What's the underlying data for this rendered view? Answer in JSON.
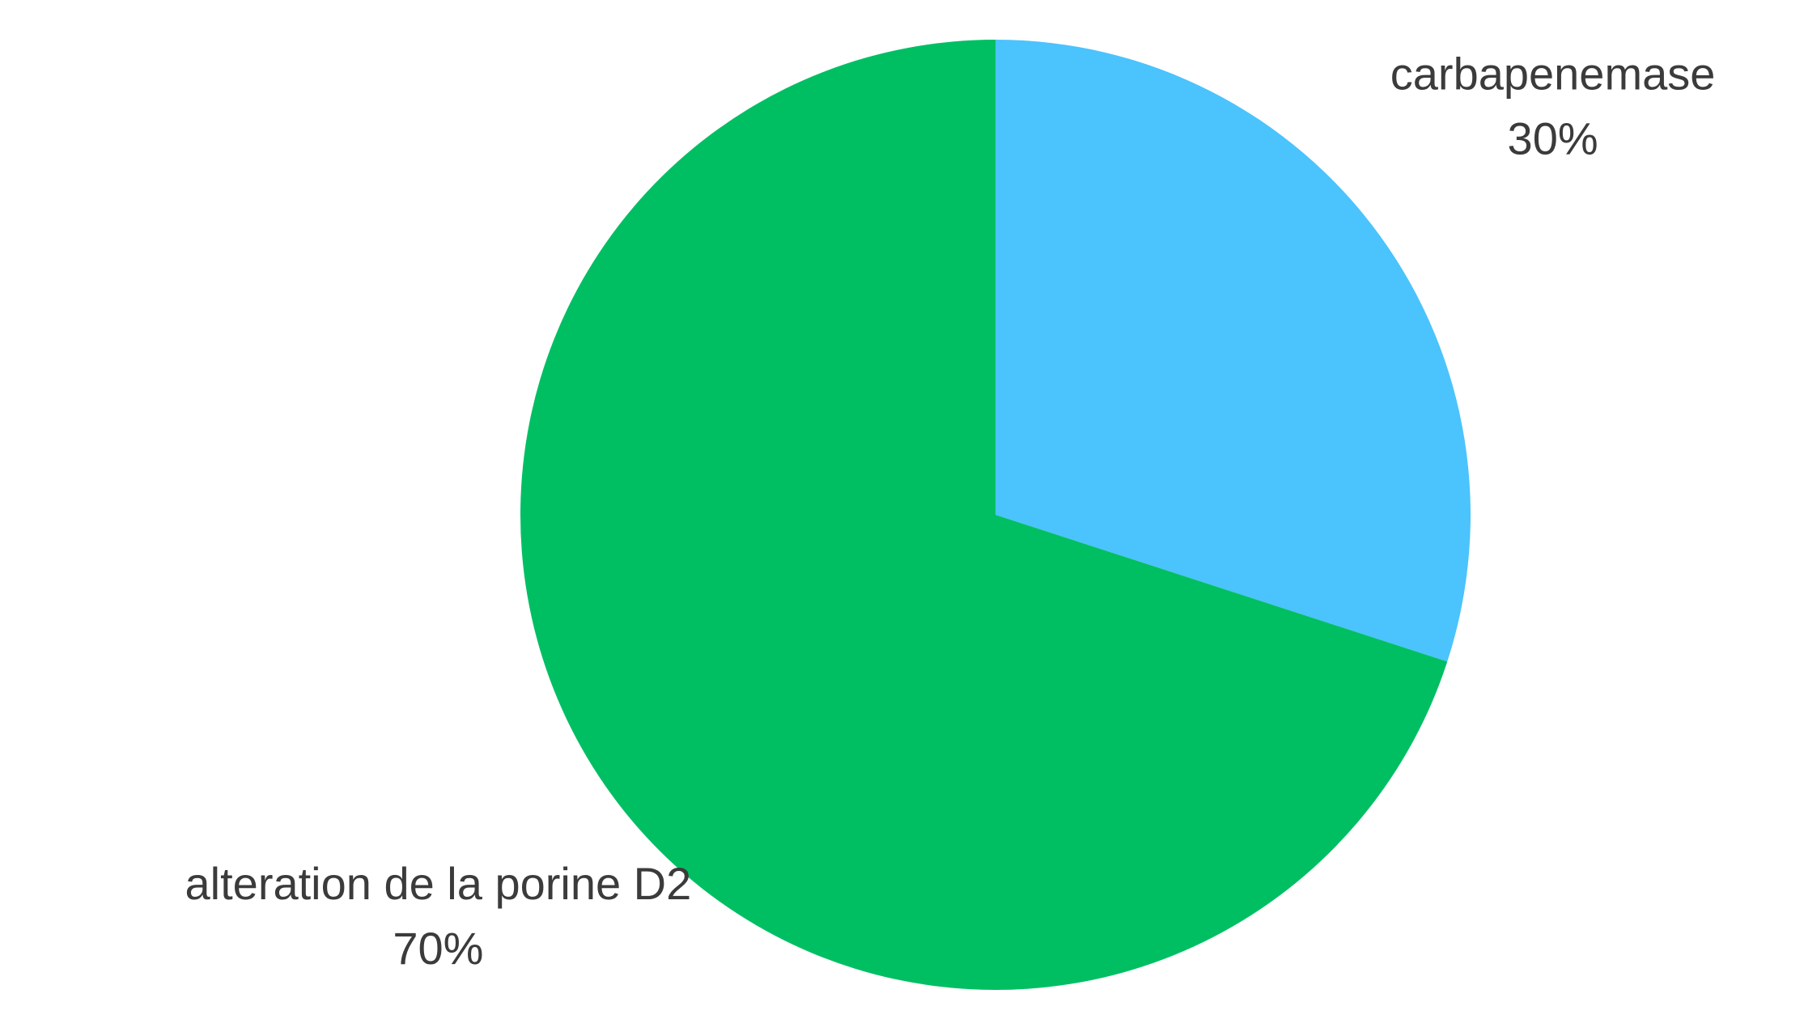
{
  "chart_data": {
    "type": "pie",
    "categories": [
      "carbapenemase",
      "alteration de la porine D2"
    ],
    "values": [
      30,
      70
    ],
    "value_labels": [
      "30%",
      "70%"
    ],
    "colors": [
      "#4bc3fd",
      "#00bf63"
    ]
  }
}
